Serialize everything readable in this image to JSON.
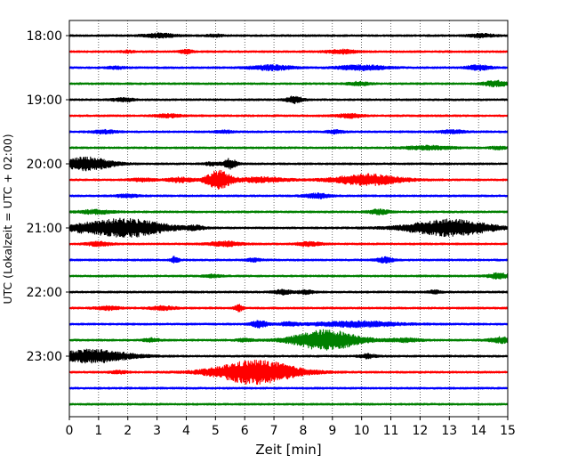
{
  "chart_data": {
    "type": "line",
    "title": "",
    "xlabel": "Zeit  [min]",
    "ylabel": "UTC (Lokalzeit = UTC + 02:00)",
    "xlim": [
      0,
      15
    ],
    "x_ticks": [
      "0",
      "1",
      "2",
      "3",
      "4",
      "5",
      "6",
      "7",
      "8",
      "9",
      "10",
      "11",
      "12",
      "13",
      "14",
      "15"
    ],
    "y_tick_labels": [
      "18:00",
      "19:00",
      "20:00",
      "21:00",
      "22:00",
      "23:00"
    ],
    "x_grid": "dotted",
    "trace_colors": [
      "#000000",
      "#ff0000",
      "#0000ff",
      "#008000"
    ],
    "trace_interval_min": 15,
    "traces": [
      {
        "start": "18:00",
        "color": "#000000",
        "events": [
          [
            3.1,
            0.4,
            2.0
          ],
          [
            14.1,
            0.3,
            1.8
          ],
          [
            5.0,
            0.2,
            1.2
          ]
        ]
      },
      {
        "start": "18:15",
        "color": "#ff0000",
        "events": [
          [
            4.0,
            0.15,
            2.0
          ],
          [
            9.3,
            0.35,
            2.0
          ],
          [
            2.0,
            0.15,
            1.2
          ]
        ]
      },
      {
        "start": "18:30",
        "color": "#0000ff",
        "events": [
          [
            6.9,
            0.5,
            2.5
          ],
          [
            10.0,
            0.6,
            2.5
          ],
          [
            14.0,
            0.3,
            2.5
          ],
          [
            1.6,
            0.2,
            1.2
          ]
        ]
      },
      {
        "start": "18:45",
        "color": "#008000",
        "events": [
          [
            9.9,
            0.25,
            1.8
          ],
          [
            14.6,
            0.3,
            3.0
          ]
        ]
      },
      {
        "start": "19:00",
        "color": "#000000",
        "events": [
          [
            7.7,
            0.2,
            3.5
          ],
          [
            1.7,
            0.2,
            1.2
          ],
          [
            2.0,
            0.15,
            1.2
          ]
        ]
      },
      {
        "start": "19:15",
        "color": "#ff0000",
        "events": [
          [
            3.4,
            0.3,
            1.6
          ],
          [
            9.6,
            0.3,
            2.0
          ]
        ]
      },
      {
        "start": "19:30",
        "color": "#0000ff",
        "events": [
          [
            1.2,
            0.3,
            1.6
          ],
          [
            5.3,
            0.2,
            1.4
          ],
          [
            9.1,
            0.2,
            1.6
          ],
          [
            13.1,
            0.3,
            1.6
          ]
        ]
      },
      {
        "start": "19:45",
        "color": "#008000",
        "events": [
          [
            12.3,
            0.6,
            1.8
          ],
          [
            14.7,
            0.2,
            1.4
          ]
        ]
      },
      {
        "start": "20:00",
        "color": "#000000",
        "events": [
          [
            0.6,
            0.6,
            7.0
          ],
          [
            5.5,
            0.15,
            5.5
          ],
          [
            4.9,
            0.2,
            1.5
          ]
        ]
      },
      {
        "start": "20:15",
        "color": "#ff0000",
        "events": [
          [
            5.1,
            0.3,
            10.0
          ],
          [
            10.2,
            0.8,
            6.0
          ],
          [
            3.8,
            0.3,
            2.5
          ],
          [
            6.6,
            0.6,
            2.5
          ],
          [
            2.5,
            0.3,
            1.5
          ]
        ]
      },
      {
        "start": "20:30",
        "color": "#0000ff",
        "events": [
          [
            8.5,
            0.3,
            2.5
          ],
          [
            2.0,
            0.3,
            1.5
          ]
        ]
      },
      {
        "start": "20:45",
        "color": "#008000",
        "events": [
          [
            0.9,
            0.4,
            2.0
          ],
          [
            10.6,
            0.25,
            2.5
          ]
        ]
      },
      {
        "start": "21:00",
        "color": "#000000",
        "events": [
          [
            1.9,
            1.0,
            10.0
          ],
          [
            13.0,
            1.0,
            9.0
          ],
          [
            4.3,
            0.2,
            2.0
          ],
          [
            0.4,
            0.3,
            2.0
          ]
        ]
      },
      {
        "start": "21:15",
        "color": "#ff0000",
        "events": [
          [
            5.3,
            0.4,
            2.5
          ],
          [
            8.2,
            0.3,
            2.0
          ],
          [
            1.0,
            0.3,
            2.0
          ]
        ]
      },
      {
        "start": "21:30",
        "color": "#0000ff",
        "events": [
          [
            3.6,
            0.1,
            3.5
          ],
          [
            10.8,
            0.2,
            3.0
          ],
          [
            6.3,
            0.2,
            1.5
          ]
        ]
      },
      {
        "start": "21:45",
        "color": "#008000",
        "events": [
          [
            14.7,
            0.25,
            3.0
          ],
          [
            4.9,
            0.2,
            1.4
          ]
        ]
      },
      {
        "start": "22:00",
        "color": "#000000",
        "events": [
          [
            7.3,
            0.2,
            2.5
          ],
          [
            8.1,
            0.2,
            1.8
          ],
          [
            12.5,
            0.15,
            1.6
          ]
        ]
      },
      {
        "start": "22:15",
        "color": "#ff0000",
        "events": [
          [
            1.3,
            0.3,
            1.8
          ],
          [
            3.2,
            0.3,
            2.0
          ],
          [
            5.8,
            0.1,
            3.5
          ]
        ]
      },
      {
        "start": "22:30",
        "color": "#0000ff",
        "events": [
          [
            9.8,
            1.0,
            3.0
          ],
          [
            6.5,
            0.2,
            3.5
          ],
          [
            7.5,
            0.2,
            2.0
          ]
        ]
      },
      {
        "start": "22:45",
        "color": "#008000",
        "events": [
          [
            8.8,
            0.8,
            11.0
          ],
          [
            2.8,
            0.2,
            1.8
          ],
          [
            11.5,
            0.4,
            1.8
          ],
          [
            14.8,
            0.3,
            3.0
          ],
          [
            6.0,
            0.2,
            1.4
          ]
        ]
      },
      {
        "start": "23:00",
        "color": "#000000",
        "events": [
          [
            0.8,
            0.9,
            7.0
          ],
          [
            10.2,
            0.2,
            2.0
          ]
        ]
      },
      {
        "start": "23:15",
        "color": "#ff0000",
        "events": [
          [
            6.4,
            1.0,
            13.0
          ],
          [
            1.7,
            0.2,
            1.4
          ]
        ]
      },
      {
        "start": "23:30",
        "color": "#0000ff",
        "events": []
      },
      {
        "start": "23:45",
        "color": "#008000",
        "events": []
      }
    ]
  }
}
